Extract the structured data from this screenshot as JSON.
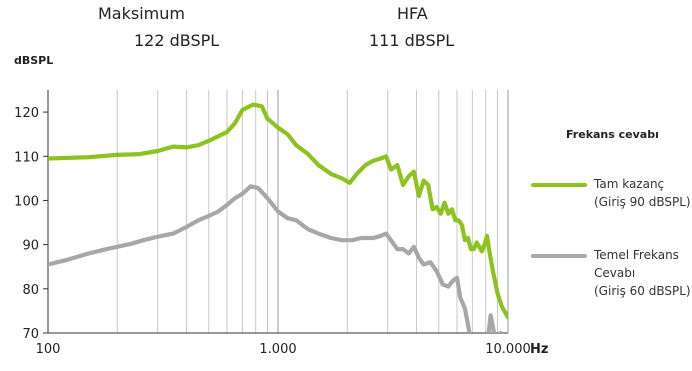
{
  "header": {
    "max_label": "Maksimum",
    "max_value": "122 dBSPL",
    "hfa_label": "HFA",
    "hfa_value": "111 dBSPL"
  },
  "legend": {
    "title": "Frekans cevabı",
    "items": [
      {
        "lines": [
          "Tam kazanç",
          "(Giriş 90 dBSPL)"
        ],
        "color": "#8dc21f"
      },
      {
        "lines": [
          "Temel Frekans",
          "Cevabı",
          "(Giriş 60 dBSPL)"
        ],
        "color": "#a7a7a7"
      }
    ]
  },
  "chart_data": {
    "type": "line",
    "ylabel": "dBSPL",
    "xlabel": "Hz",
    "xscale": "log",
    "xlim": [
      100,
      10500
    ],
    "ylim": [
      70,
      125
    ],
    "x_ticks": [
      {
        "value": 100,
        "label": "100"
      },
      {
        "value": 1000,
        "label": "1.000"
      },
      {
        "value": 10000,
        "label": "10.000"
      }
    ],
    "y_ticks": [
      70,
      80,
      90,
      100,
      110,
      120
    ],
    "grid": {
      "vertical": true,
      "horizontal": false
    },
    "series": [
      {
        "name": "Tam kazanç",
        "color": "#8dc21f",
        "points": [
          [
            100,
            109.5
          ],
          [
            150,
            109.8
          ],
          [
            200,
            110.3
          ],
          [
            250,
            110.5
          ],
          [
            300,
            111.2
          ],
          [
            350,
            112.2
          ],
          [
            400,
            112.0
          ],
          [
            450,
            112.5
          ],
          [
            500,
            113.5
          ],
          [
            600,
            115.5
          ],
          [
            650,
            117.5
          ],
          [
            700,
            120.5
          ],
          [
            780,
            121.7
          ],
          [
            850,
            121.3
          ],
          [
            900,
            118.5
          ],
          [
            1000,
            116.5
          ],
          [
            1100,
            115.0
          ],
          [
            1200,
            112.5
          ],
          [
            1350,
            110.5
          ],
          [
            1500,
            108.0
          ],
          [
            1700,
            106.0
          ],
          [
            1900,
            105.0
          ],
          [
            2050,
            104.0
          ],
          [
            2200,
            106.0
          ],
          [
            2400,
            108.0
          ],
          [
            2600,
            109.0
          ],
          [
            2800,
            109.5
          ],
          [
            2950,
            110.0
          ],
          [
            3100,
            107.0
          ],
          [
            3300,
            108.0
          ],
          [
            3500,
            103.5
          ],
          [
            3700,
            105.5
          ],
          [
            3900,
            106.5
          ],
          [
            4100,
            101.0
          ],
          [
            4300,
            104.5
          ],
          [
            4500,
            103.5
          ],
          [
            4700,
            98.0
          ],
          [
            4900,
            98.5
          ],
          [
            5100,
            97.0
          ],
          [
            5300,
            99.5
          ],
          [
            5500,
            97.0
          ],
          [
            5700,
            98.0
          ],
          [
            5900,
            95.5
          ],
          [
            6100,
            95.5
          ],
          [
            6300,
            94.5
          ],
          [
            6500,
            91.0
          ],
          [
            6700,
            91.5
          ],
          [
            6900,
            89.0
          ],
          [
            7100,
            89.0
          ],
          [
            7300,
            90.5
          ],
          [
            7500,
            89.5
          ],
          [
            7700,
            88.5
          ],
          [
            7900,
            90.0
          ],
          [
            8100,
            92.0
          ],
          [
            8300,
            88.5
          ],
          [
            8600,
            84.0
          ],
          [
            9000,
            79.0
          ],
          [
            9400,
            76.0
          ],
          [
            10000,
            73.5
          ]
        ]
      },
      {
        "name": "Temel Frekans Cevabı",
        "color": "#a7a7a7",
        "points": [
          [
            100,
            85.5
          ],
          [
            120,
            86.5
          ],
          [
            150,
            88.0
          ],
          [
            180,
            89.0
          ],
          [
            200,
            89.5
          ],
          [
            230,
            90.2
          ],
          [
            260,
            91.0
          ],
          [
            300,
            91.8
          ],
          [
            350,
            92.5
          ],
          [
            400,
            94.0
          ],
          [
            450,
            95.5
          ],
          [
            500,
            96.5
          ],
          [
            550,
            97.5
          ],
          [
            600,
            99.0
          ],
          [
            650,
            100.5
          ],
          [
            700,
            101.5
          ],
          [
            760,
            103.2
          ],
          [
            820,
            102.8
          ],
          [
            900,
            100.5
          ],
          [
            1000,
            97.5
          ],
          [
            1100,
            96.0
          ],
          [
            1200,
            95.5
          ],
          [
            1350,
            93.5
          ],
          [
            1500,
            92.5
          ],
          [
            1700,
            91.5
          ],
          [
            1900,
            91.0
          ],
          [
            2100,
            91.0
          ],
          [
            2300,
            91.5
          ],
          [
            2600,
            91.5
          ],
          [
            2800,
            92.0
          ],
          [
            2950,
            92.5
          ],
          [
            3100,
            91.0
          ],
          [
            3300,
            89.0
          ],
          [
            3500,
            89.0
          ],
          [
            3700,
            88.0
          ],
          [
            3900,
            89.5
          ],
          [
            4100,
            87.0
          ],
          [
            4300,
            85.5
          ],
          [
            4600,
            86.0
          ],
          [
            4900,
            84.0
          ],
          [
            5200,
            81.0
          ],
          [
            5500,
            80.5
          ],
          [
            5800,
            82.0
          ],
          [
            6000,
            82.5
          ],
          [
            6200,
            78.0
          ],
          [
            6500,
            75.5
          ],
          [
            6800,
            70.0
          ],
          [
            7000,
            67.0
          ],
          [
            7300,
            65.0
          ],
          [
            7800,
            66.0
          ],
          [
            8100,
            66.5
          ],
          [
            8400,
            74.0
          ],
          [
            8700,
            70.0
          ],
          [
            9000,
            66.5
          ],
          [
            9300,
            70.0
          ]
        ]
      }
    ]
  }
}
